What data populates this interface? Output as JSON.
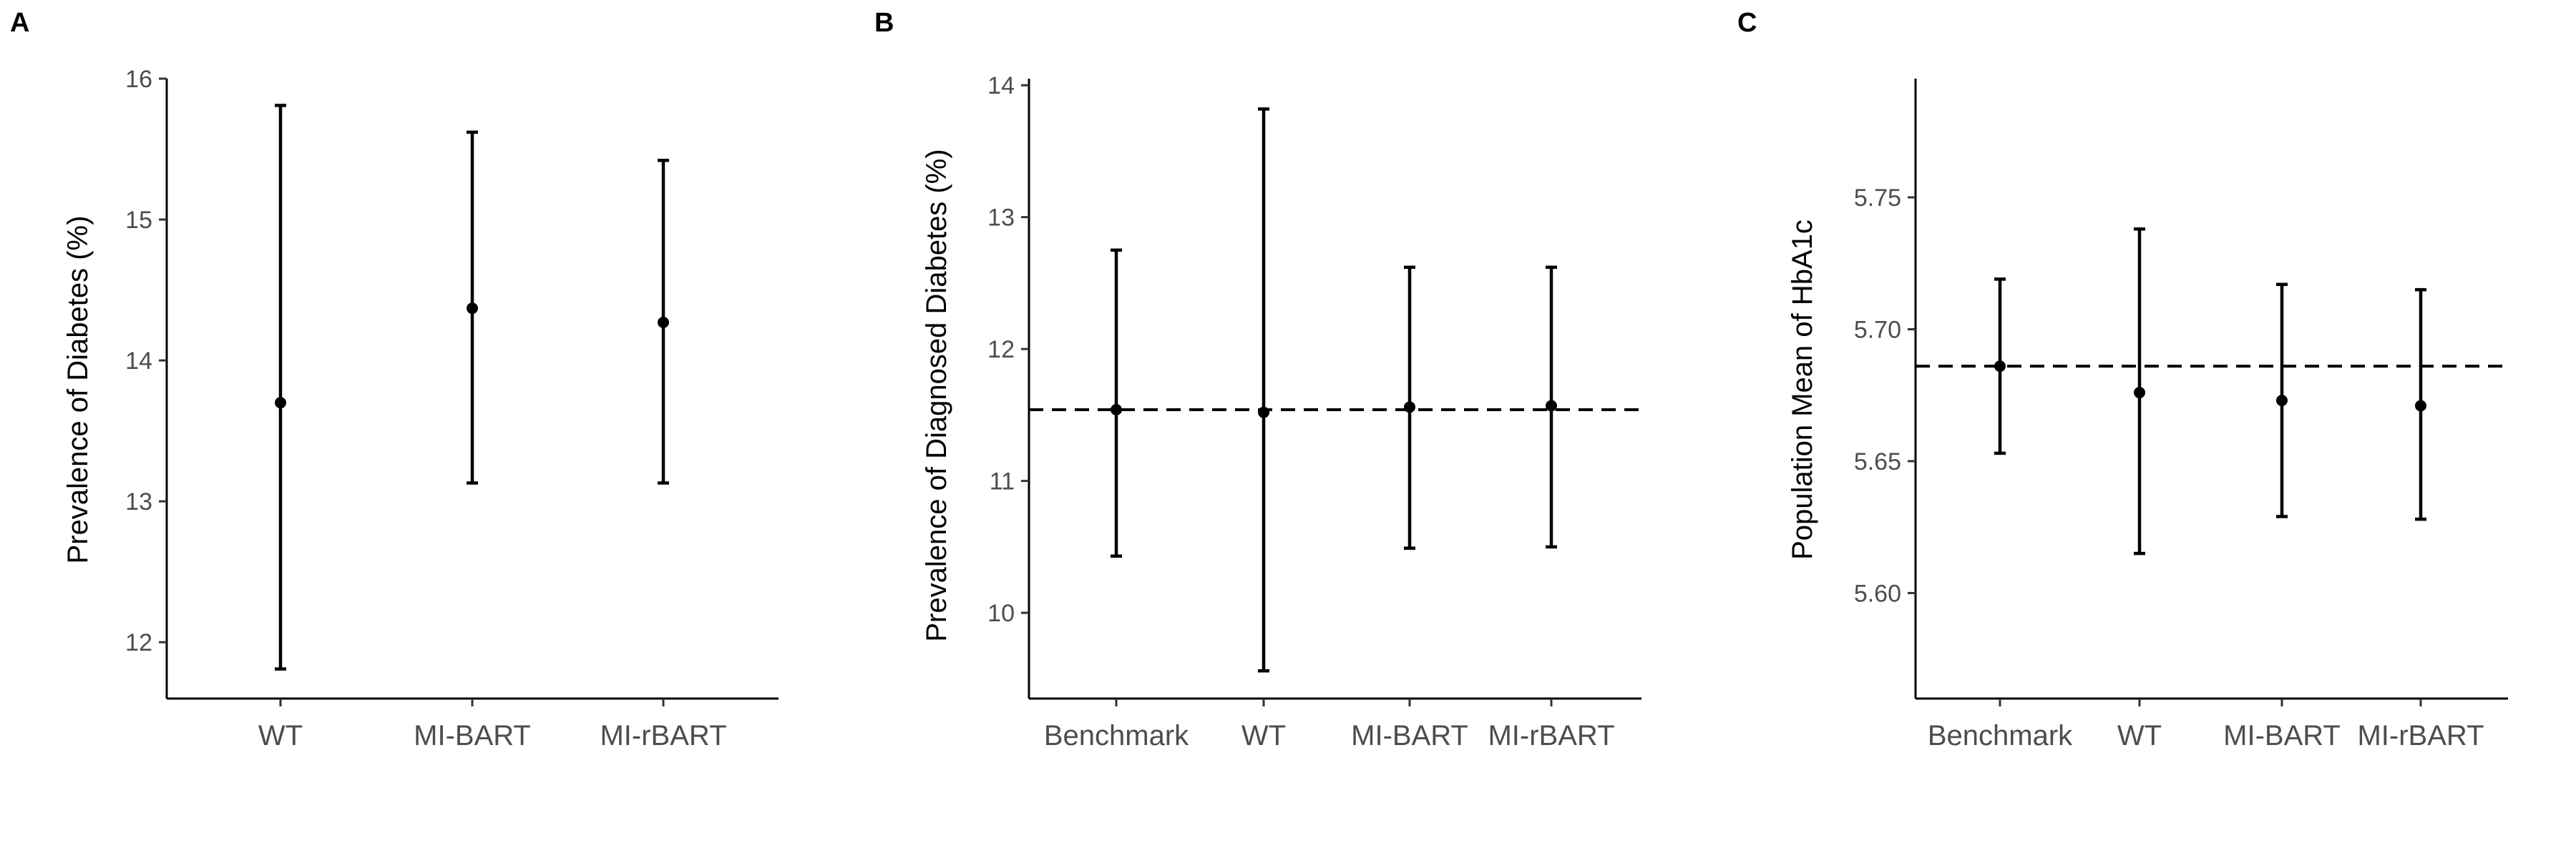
{
  "chart_data": [
    {
      "panel": "A",
      "type": "errorbar",
      "ylabel": "Prevalence of Diabetes (%)",
      "xlabel": "",
      "ylim": [
        11.6,
        16.0
      ],
      "yticks": [
        12,
        13,
        14,
        15,
        16
      ],
      "categories": [
        "WT",
        "MI-BART",
        "MI-rBART"
      ],
      "estimates": [
        13.7,
        14.37,
        14.27
      ],
      "lower": [
        11.81,
        13.13,
        13.13
      ],
      "upper": [
        15.81,
        15.62,
        15.42
      ]
    },
    {
      "panel": "B",
      "type": "errorbar",
      "ylabel": "Prevalence of Diagnosed Diabetes (%)",
      "xlabel": "",
      "ylim": [
        9.35,
        14.05
      ],
      "yticks": [
        10,
        11,
        12,
        13,
        14
      ],
      "categories": [
        "Benchmark",
        "WT",
        "MI-BART",
        "MI-rBART"
      ],
      "estimates": [
        11.54,
        11.52,
        11.56,
        11.57
      ],
      "lower": [
        10.43,
        9.56,
        10.49,
        10.5
      ],
      "upper": [
        12.75,
        13.82,
        12.62,
        12.62
      ],
      "reference_line": 11.54
    },
    {
      "panel": "C",
      "type": "errorbar",
      "ylabel": "Population Mean of HbA1c",
      "xlabel": "",
      "ylim": [
        5.56,
        5.795
      ],
      "yticks": [
        5.6,
        5.65,
        5.7,
        5.75
      ],
      "ytick_labels": [
        "5.60",
        "5.65",
        "5.70",
        "5.75"
      ],
      "categories": [
        "Benchmark",
        "WT",
        "MI-BART",
        "MI-rBART"
      ],
      "estimates": [
        5.686,
        5.676,
        5.673,
        5.671
      ],
      "lower": [
        5.653,
        5.615,
        5.629,
        5.628
      ],
      "upper": [
        5.719,
        5.738,
        5.717,
        5.715
      ],
      "reference_line": 5.686
    }
  ]
}
